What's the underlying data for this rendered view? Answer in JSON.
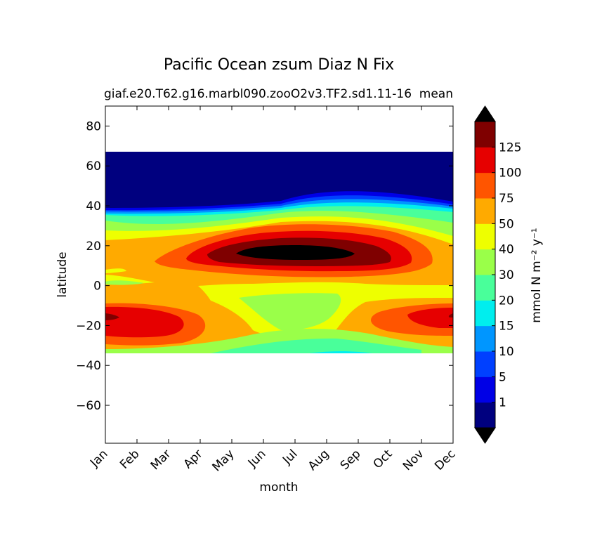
{
  "chart_data": {
    "type": "heatmap",
    "title": "Pacific Ocean zsum Diaz N Fix",
    "subtitle_left": "giaf.e20.T62.g16.marbl090.zooO2v3.TF2.sd1.11-16",
    "subtitle_right": "mean",
    "xlabel": "month",
    "ylabel": "latitude",
    "x_categories": [
      "Jan",
      "Feb",
      "Mar",
      "Apr",
      "May",
      "Jun",
      "Jul",
      "Aug",
      "Sep",
      "Oct",
      "Nov",
      "Dec"
    ],
    "yticks": [
      "80",
      "60",
      "40",
      "20",
      "0",
      "−20",
      "−40",
      "−60"
    ],
    "ytick_values": [
      80,
      60,
      40,
      20,
      0,
      -20,
      -40,
      -60
    ],
    "ylim": [
      -79,
      90
    ],
    "data_lat_range": [
      -34,
      67
    ],
    "colorbar": {
      "label": "mmol N m⁻² y⁻¹",
      "tick_labels": [
        "1",
        "5",
        "10",
        "15",
        "20",
        "30",
        "40",
        "50",
        "75",
        "100",
        "125"
      ],
      "colors": [
        "#00007f",
        "#0000e6",
        "#0040ff",
        "#0096ff",
        "#00eeee",
        "#49ff9a",
        "#9aff49",
        "#eeff00",
        "#ffaa00",
        "#ff5500",
        "#e60000",
        "#7f0000"
      ],
      "over_color": "#000000",
      "under_color": "#000000"
    },
    "colors": {
      "beyond_top": "#7f0000",
      "max_core": "#000000"
    }
  }
}
